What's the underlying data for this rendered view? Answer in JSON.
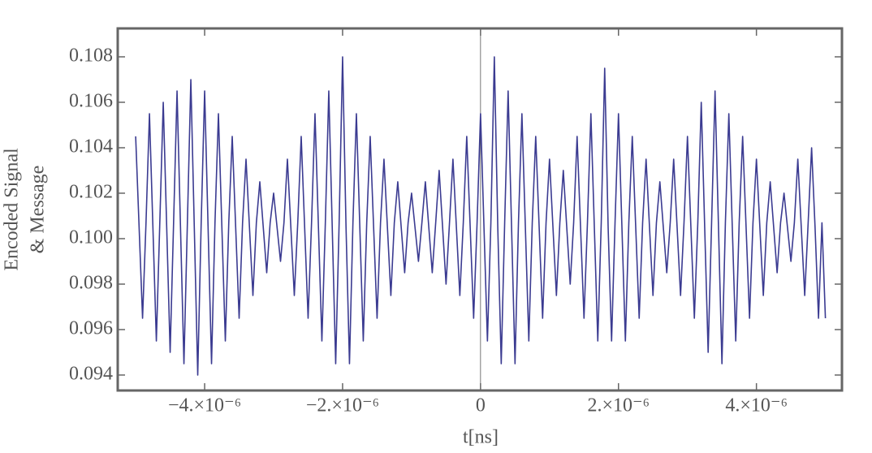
{
  "chart_data": {
    "type": "line",
    "xlabel": "t[ns]",
    "ylabel": [
      "Encoded Signal",
      "& Message"
    ],
    "xlim": [
      -5.26e-06,
      5.24e-06
    ],
    "ylim": [
      0.09332,
      0.10925
    ],
    "xticks": [
      {
        "value": -4e-06,
        "label": "−4.×10⁻⁶"
      },
      {
        "value": -2e-06,
        "label": "−2.×10⁻⁶"
      },
      0,
      {
        "value": 2e-06,
        "label": "2.×10⁻⁶"
      },
      {
        "value": 4e-06,
        "label": "4.×10⁻⁶"
      }
    ],
    "yticks": [
      0.094,
      0.096,
      0.098,
      {
        "value": 0.1,
        "label": "0.100"
      },
      0.102,
      0.104,
      0.106,
      0.108
    ],
    "series": [
      {
        "color": "#3b3b91",
        "x": [
          -5e-06,
          -4.95e-06,
          -4.9e-06,
          -4.85e-06,
          -4.8e-06,
          -4.75e-06,
          -4.7e-06,
          -4.65e-06,
          -4.6e-06,
          -4.55e-06,
          -4.5e-06,
          -4.45e-06,
          -4.4e-06,
          -4.35e-06,
          -4.3e-06,
          -4.25e-06,
          -4.2e-06,
          -4.15e-06,
          -4.1e-06,
          -4.05e-06,
          -4e-06,
          -3.95e-06,
          -3.9e-06,
          -3.85e-06,
          -3.8e-06,
          -3.75e-06,
          -3.7e-06,
          -3.65e-06,
          -3.6e-06,
          -3.55e-06,
          -3.5e-06,
          -3.45e-06,
          -3.4e-06,
          -3.35e-06,
          -3.3e-06,
          -3.25e-06,
          -3.2e-06,
          -3.15e-06,
          -3.1e-06,
          -3.05e-06,
          -3e-06,
          -2.95e-06,
          -2.9e-06,
          -2.85e-06,
          -2.8e-06,
          -2.75e-06,
          -2.7e-06,
          -2.65e-06,
          -2.6e-06,
          -2.55e-06,
          -2.5e-06,
          -2.45e-06,
          -2.4e-06,
          -2.35e-06,
          -2.3e-06,
          -2.25e-06,
          -2.2e-06,
          -2.15e-06,
          -2.1e-06,
          -2.05e-06,
          -2e-06,
          -1.95e-06,
          -1.9e-06,
          -1.85e-06,
          -1.8e-06,
          -1.75e-06,
          -1.7e-06,
          -1.65e-06,
          -1.6e-06,
          -1.55e-06,
          -1.5e-06,
          -1.45e-06,
          -1.4e-06,
          -1.35e-06,
          -1.3e-06,
          -1.25e-06,
          -1.2e-06,
          -1.15e-06,
          -1.1e-06,
          -1.05e-06,
          -1e-06,
          -9.5e-07,
          -9e-07,
          -8.5e-07,
          -8e-07,
          -7.5e-07,
          -7e-07,
          -6.5e-07,
          -6e-07,
          -5.5e-07,
          -5e-07,
          -4.5e-07,
          -4e-07,
          -3.5e-07,
          -3e-07,
          -2.5e-07,
          -2e-07,
          -1.5e-07,
          -1e-07,
          -5e-08,
          0,
          5e-08,
          1e-07,
          1.5e-07,
          2e-07,
          2.5e-07,
          3e-07,
          3.5e-07,
          4e-07,
          4.5e-07,
          5e-07,
          5.5e-07,
          6e-07,
          6.5e-07,
          7e-07,
          7.5e-07,
          8e-07,
          8.5e-07,
          9e-07,
          9.5e-07,
          1e-06,
          1.05e-06,
          1.1e-06,
          1.15e-06,
          1.2e-06,
          1.25e-06,
          1.3e-06,
          1.35e-06,
          1.4e-06,
          1.45e-06,
          1.5e-06,
          1.55e-06,
          1.6e-06,
          1.65e-06,
          1.7e-06,
          1.75e-06,
          1.8e-06,
          1.85e-06,
          1.9e-06,
          1.95e-06,
          2e-06,
          2.05e-06,
          2.1e-06,
          2.15e-06,
          2.2e-06,
          2.25e-06,
          2.3e-06,
          2.35e-06,
          2.4e-06,
          2.45e-06,
          2.5e-06,
          2.55e-06,
          2.6e-06,
          2.65e-06,
          2.7e-06,
          2.75e-06,
          2.8e-06,
          2.85e-06,
          2.9e-06,
          2.95e-06,
          3e-06,
          3.05e-06,
          3.1e-06,
          3.15e-06,
          3.2e-06,
          3.25e-06,
          3.3e-06,
          3.35e-06,
          3.4e-06,
          3.45e-06,
          3.5e-06,
          3.55e-06,
          3.6e-06,
          3.65e-06,
          3.7e-06,
          3.75e-06,
          3.8e-06,
          3.85e-06,
          3.9e-06,
          3.95e-06,
          4e-06,
          4.05e-06,
          4.1e-06,
          4.15e-06,
          4.2e-06,
          4.25e-06,
          4.3e-06,
          4.35e-06,
          4.4e-06,
          4.45e-06,
          4.5e-06,
          4.55e-06,
          4.6e-06,
          4.65e-06,
          4.7e-06,
          4.75e-06,
          4.8e-06,
          4.85e-06,
          4.9e-06,
          4.95e-06,
          5e-06
        ],
        "values": [
          0.1045,
          0.1005,
          0.0965,
          0.1007,
          0.1055,
          0.1005,
          0.0955,
          0.1007,
          0.106,
          0.1005,
          0.095,
          0.1007,
          0.1065,
          0.1005,
          0.0945,
          0.1007,
          0.107,
          0.1005,
          0.094,
          0.1007,
          0.1065,
          0.1005,
          0.0945,
          0.1007,
          0.1055,
          0.1005,
          0.0955,
          0.1007,
          0.1045,
          0.1005,
          0.0965,
          0.1007,
          0.1035,
          0.1005,
          0.0975,
          0.1007,
          0.1025,
          0.1005,
          0.0985,
          0.1007,
          0.102,
          0.1005,
          0.099,
          0.1007,
          0.1035,
          0.1005,
          0.0975,
          0.1007,
          0.1045,
          0.1005,
          0.0965,
          0.1007,
          0.1055,
          0.1005,
          0.0955,
          0.1007,
          0.1065,
          0.1005,
          0.0945,
          0.1007,
          0.108,
          0.1005,
          0.0945,
          0.1007,
          0.1055,
          0.1005,
          0.0955,
          0.1007,
          0.1045,
          0.1005,
          0.0965,
          0.1007,
          0.1035,
          0.1005,
          0.0975,
          0.1007,
          0.1025,
          0.1005,
          0.0985,
          0.1007,
          0.102,
          0.1005,
          0.099,
          0.1007,
          0.1025,
          0.1005,
          0.0985,
          0.1007,
          0.103,
          0.1005,
          0.098,
          0.1007,
          0.1035,
          0.1005,
          0.0975,
          0.1007,
          0.1045,
          0.1005,
          0.0965,
          0.1007,
          0.1055,
          0.1005,
          0.0955,
          0.1007,
          0.108,
          0.1005,
          0.0945,
          0.1007,
          0.1065,
          0.1005,
          0.0945,
          0.1007,
          0.1055,
          0.1005,
          0.0955,
          0.1007,
          0.1045,
          0.1005,
          0.0965,
          0.1007,
          0.1035,
          0.1005,
          0.0975,
          0.1007,
          0.103,
          0.1005,
          0.098,
          0.1007,
          0.1045,
          0.1005,
          0.0965,
          0.1007,
          0.1055,
          0.1005,
          0.0955,
          0.1007,
          0.1075,
          0.1005,
          0.0955,
          0.1007,
          0.1055,
          0.1005,
          0.0955,
          0.1007,
          0.1045,
          0.1005,
          0.0965,
          0.1007,
          0.1035,
          0.1005,
          0.0975,
          0.1007,
          0.1025,
          0.1005,
          0.0985,
          0.1007,
          0.1035,
          0.1005,
          0.0975,
          0.1007,
          0.1045,
          0.1005,
          0.0965,
          0.1007,
          0.106,
          0.1005,
          0.095,
          0.1007,
          0.1065,
          0.1005,
          0.0945,
          0.1007,
          0.1055,
          0.1005,
          0.0955,
          0.1007,
          0.1045,
          0.1005,
          0.0965,
          0.1007,
          0.1035,
          0.1005,
          0.0975,
          0.1007,
          0.1025,
          0.1005,
          0.0985,
          0.1007,
          0.102,
          0.1005,
          0.099,
          0.1007,
          0.1035,
          0.1005,
          0.0975,
          0.1007,
          0.104,
          0.1005,
          0.0965,
          0.1007,
          0.0965
        ]
      }
    ]
  }
}
